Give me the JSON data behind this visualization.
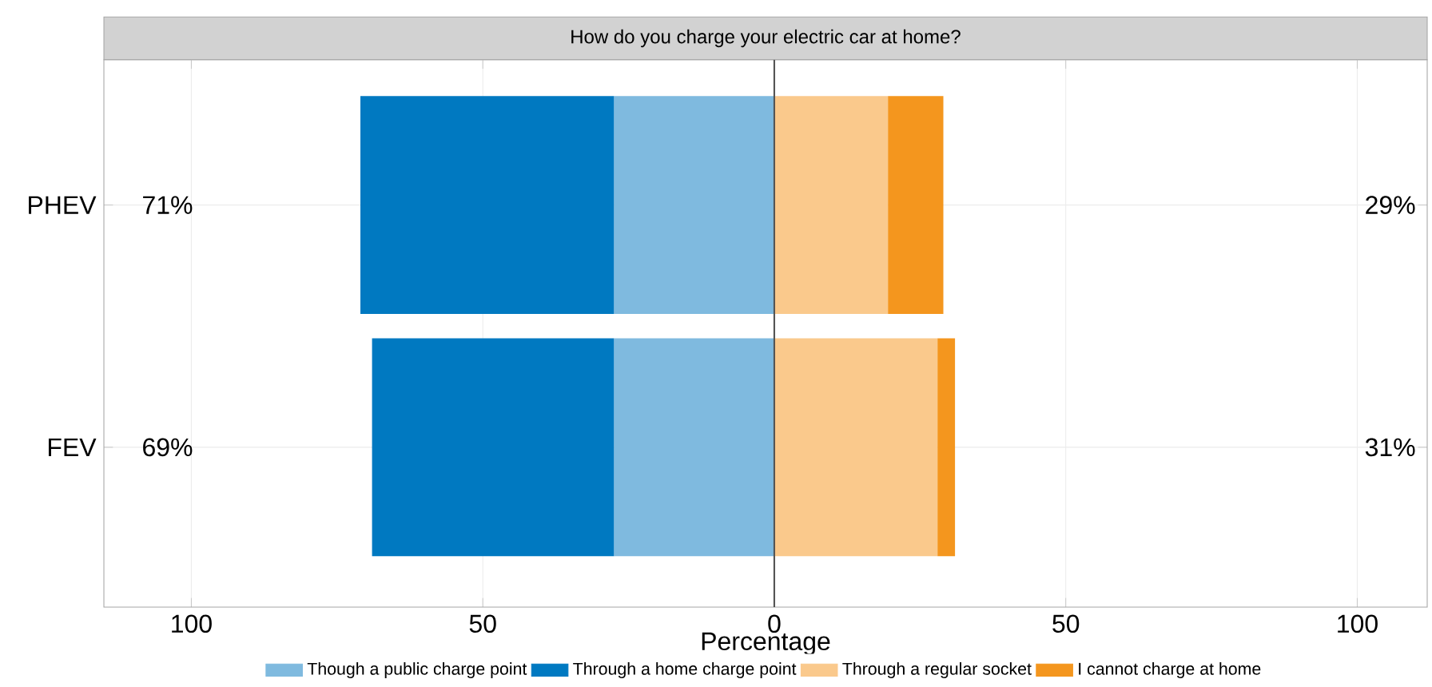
{
  "chart_data": {
    "type": "bar",
    "orientation": "horizontal",
    "stacked": true,
    "title": "How do you charge your electric car at home?",
    "xlabel": "Percentage",
    "categories": [
      "PHEV",
      "FEV"
    ],
    "series": [
      {
        "name": "Though a public charge point",
        "color": "#7fbadf",
        "values": [
          -27.5,
          -27.5
        ]
      },
      {
        "name": "Through a home charge point",
        "color": "#0079c1",
        "values": [
          -43.5,
          -41.5
        ]
      },
      {
        "name": "Through a regular socket",
        "color": "#fac98c",
        "values": [
          19.5,
          28
        ]
      },
      {
        "name": "I cannot charge at home",
        "color": "#f4961e",
        "values": [
          9.5,
          3
        ]
      }
    ],
    "xlim": [
      -115,
      112
    ],
    "xticks": [
      {
        "value": -100,
        "label": "100"
      },
      {
        "value": -50,
        "label": "50"
      },
      0,
      50,
      100
    ],
    "ref_lines": [
      {
        "axis": "x",
        "value": 0,
        "color": "#555555"
      }
    ],
    "annotations": [
      "71%",
      "29%",
      "69%",
      "31%"
    ],
    "grid": true,
    "legend": "bottom"
  }
}
